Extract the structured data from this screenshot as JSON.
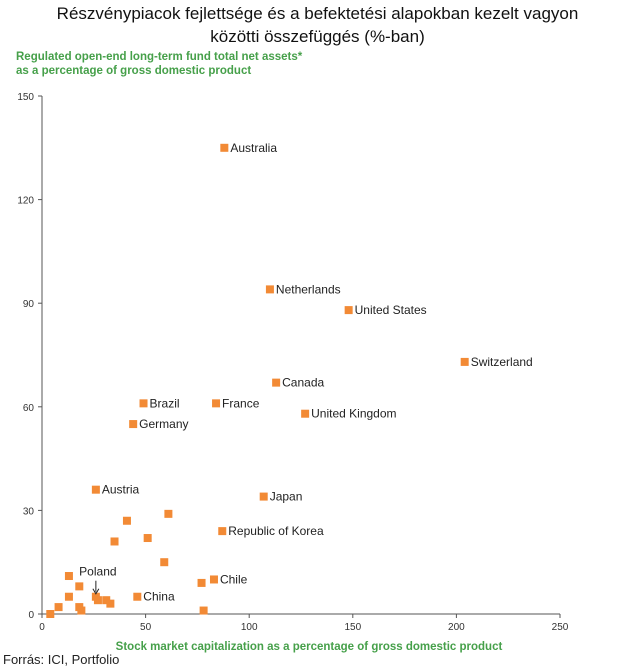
{
  "page": {
    "title_lines": [
      "Részvénypiacok fejlettsége és a befektetési alapokban kezelt vagyon",
      "közötti összefüggés (%-ban)"
    ],
    "source": "Forrás: ICI, Portfolio"
  },
  "chart_data": {
    "type": "scatter",
    "ylabel_lines": [
      "Regulated open-end long-term fund total net assets*",
      "as a percentage of gross domestic product"
    ],
    "xlabel": "Stock market capitalization as a percentage of gross domestic product",
    "xlim": [
      0,
      250
    ],
    "ylim": [
      0,
      150
    ],
    "xticks": [
      0,
      50,
      100,
      150,
      200,
      250
    ],
    "yticks": [
      0,
      30,
      60,
      90,
      120,
      150
    ],
    "grid": false,
    "marker_color": "#f28a35",
    "points": [
      {
        "x": 88,
        "y": 135,
        "label": "Australia"
      },
      {
        "x": 110,
        "y": 94,
        "label": "Netherlands"
      },
      {
        "x": 148,
        "y": 88,
        "label": "United States"
      },
      {
        "x": 204,
        "y": 73,
        "label": "Switzerland"
      },
      {
        "x": 113,
        "y": 67,
        "label": "Canada"
      },
      {
        "x": 49,
        "y": 61,
        "label": "Brazil"
      },
      {
        "x": 84,
        "y": 61,
        "label": "France"
      },
      {
        "x": 127,
        "y": 58,
        "label": "United Kingdom"
      },
      {
        "x": 44,
        "y": 55,
        "label": "Germany"
      },
      {
        "x": 26,
        "y": 36,
        "label": "Austria"
      },
      {
        "x": 107,
        "y": 34,
        "label": "Japan"
      },
      {
        "x": 87,
        "y": 24,
        "label": "Republic of Korea"
      },
      {
        "x": 83,
        "y": 10,
        "label": "Chile"
      },
      {
        "x": 46,
        "y": 5,
        "label": "China"
      },
      {
        "x": 26,
        "y": 5,
        "label": "Poland"
      },
      {
        "x": 41,
        "y": 27,
        "label": ""
      },
      {
        "x": 61,
        "y": 29,
        "label": ""
      },
      {
        "x": 35,
        "y": 21,
        "label": ""
      },
      {
        "x": 51,
        "y": 22,
        "label": ""
      },
      {
        "x": 59,
        "y": 15,
        "label": ""
      },
      {
        "x": 13,
        "y": 11,
        "label": ""
      },
      {
        "x": 18,
        "y": 8,
        "label": ""
      },
      {
        "x": 13,
        "y": 5,
        "label": ""
      },
      {
        "x": 8,
        "y": 2,
        "label": ""
      },
      {
        "x": 4,
        "y": 0,
        "label": ""
      },
      {
        "x": 18,
        "y": 2,
        "label": ""
      },
      {
        "x": 19,
        "y": 1,
        "label": ""
      },
      {
        "x": 27,
        "y": 4,
        "label": ""
      },
      {
        "x": 31,
        "y": 4,
        "label": ""
      },
      {
        "x": 33,
        "y": 3,
        "label": ""
      },
      {
        "x": 77,
        "y": 9,
        "label": ""
      },
      {
        "x": 78,
        "y": 1,
        "label": ""
      }
    ]
  }
}
